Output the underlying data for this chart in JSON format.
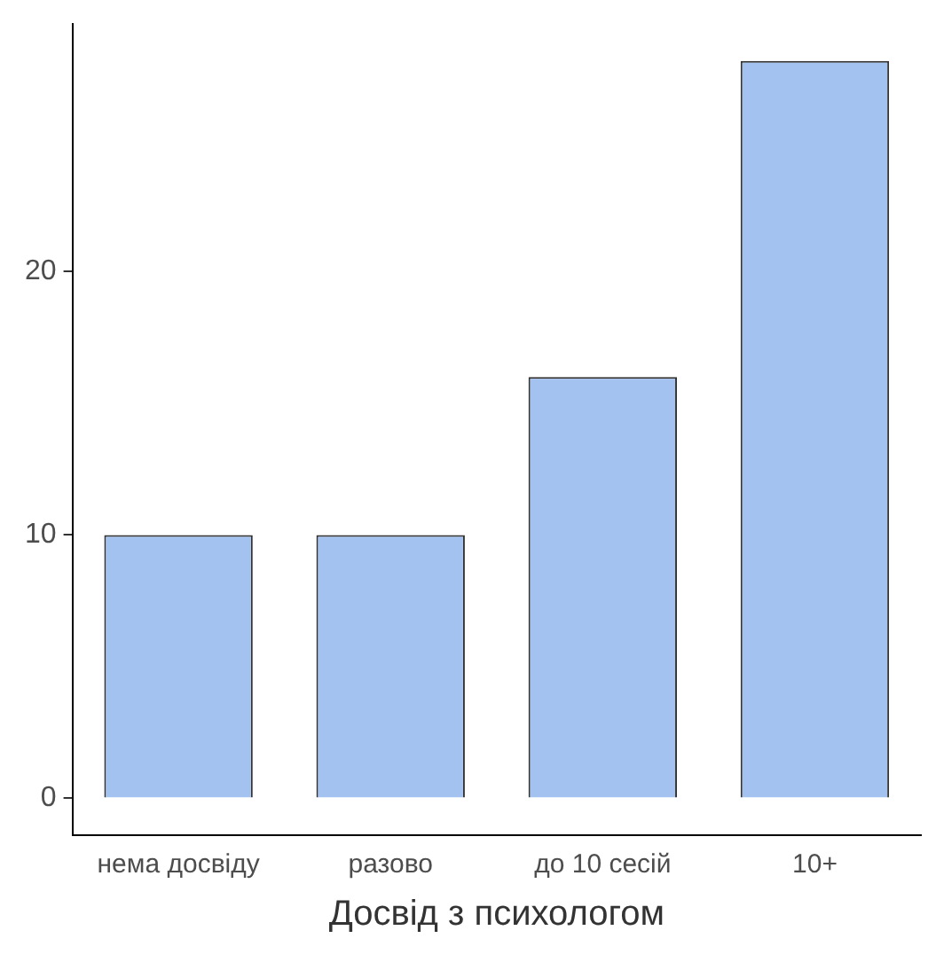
{
  "chart_data": {
    "type": "bar",
    "xlabel": "Досвід з психологом",
    "categories": [
      "нема досвіду",
      "разово",
      "до 10 сесій",
      "10+"
    ],
    "values": [
      10,
      10,
      16,
      28
    ],
    "color": "#a4c2f0",
    "ylim": [
      -1.4,
      29.4
    ],
    "yticks": [
      0,
      10,
      20
    ],
    "grid": false,
    "legend": false
  }
}
